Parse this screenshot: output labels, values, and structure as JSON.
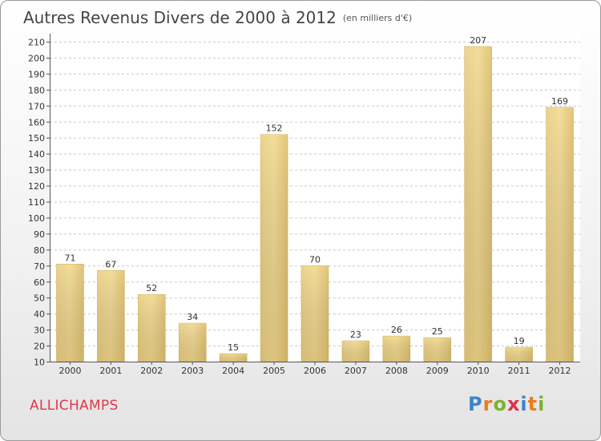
{
  "header": {
    "title": "Autres Revenus Divers de 2000 à 2012",
    "subtitle": "(en milliers d'€)"
  },
  "footer": {
    "commune": "ALLICHAMPS",
    "logo_letters": [
      "P",
      "r",
      "o",
      "x",
      "i",
      "t",
      "i"
    ],
    "logo_colors": [
      "#3a86c8",
      "#f07a1a",
      "#7ab32e",
      "#e0304a",
      "#3a86c8",
      "#f07a1a",
      "#7ab32e"
    ]
  },
  "chart_data": {
    "type": "bar",
    "title": "Autres Revenus Divers de 2000 à 2012",
    "subtitle": "(en milliers d'€)",
    "xlabel": "",
    "ylabel": "",
    "categories": [
      "2000",
      "2001",
      "2002",
      "2003",
      "2004",
      "2005",
      "2006",
      "2007",
      "2008",
      "2009",
      "2010",
      "2011",
      "2012"
    ],
    "values": [
      71,
      67,
      52,
      34,
      15,
      152,
      70,
      23,
      26,
      25,
      207,
      19,
      169
    ],
    "ylim": [
      10,
      210
    ],
    "yticks": [
      10,
      20,
      30,
      40,
      50,
      60,
      70,
      80,
      90,
      100,
      110,
      120,
      130,
      140,
      150,
      160,
      170,
      180,
      190,
      200,
      210
    ],
    "grid": true,
    "bar_color": "#e6c97e"
  }
}
